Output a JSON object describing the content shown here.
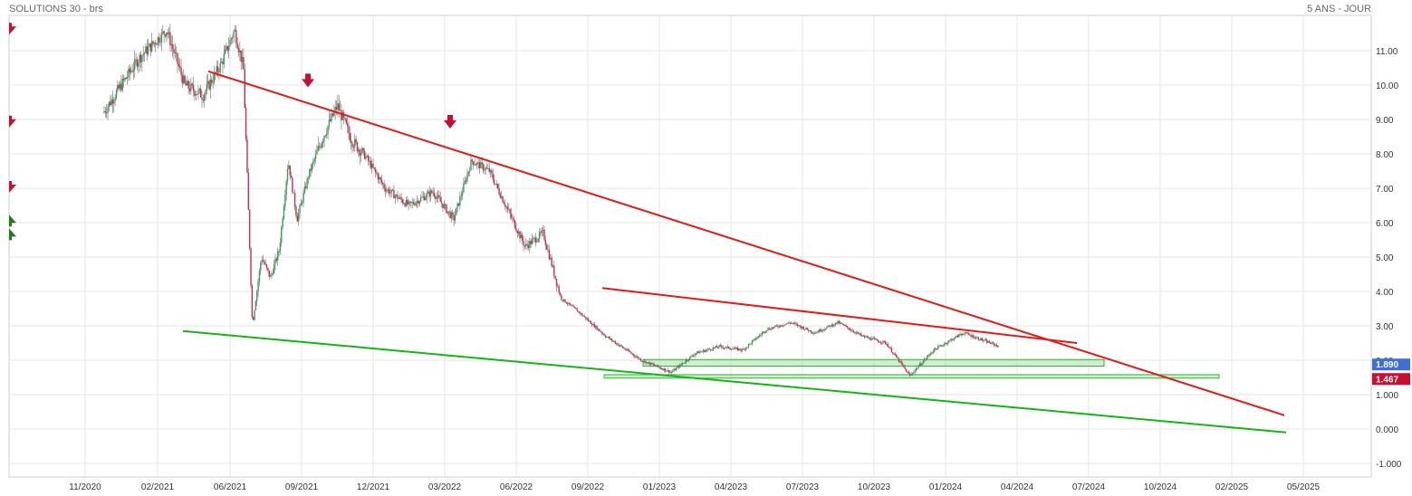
{
  "chart_data": {
    "type": "candlestick",
    "title": "SOLUTIONS 30 - brs",
    "period_label": "5 ANS - JOUR",
    "x_ticks": [
      "11/2020",
      "02/2021",
      "06/2021",
      "09/2021",
      "12/2021",
      "03/2022",
      "06/2022",
      "09/2022",
      "01/2023",
      "04/2023",
      "07/2023",
      "10/2023",
      "01/2024",
      "04/2024",
      "07/2024",
      "10/2024",
      "02/2025",
      "05/2025"
    ],
    "y_ticks": [
      "11.00",
      "10.00",
      "9.00",
      "8.00",
      "7.00",
      "6.00",
      "5.00",
      "4.00",
      "3.00",
      "2.00",
      "1.000",
      "0.000",
      "-1.000"
    ],
    "ylim": [
      -1.35,
      12.1
    ],
    "grid": true,
    "price_path": [
      [
        "11/2020",
        9.2
      ],
      [
        "11/2020",
        10.8
      ],
      [
        "02/2021",
        11.6
      ],
      [
        "02/2021",
        10.0
      ],
      [
        "02/2021",
        9.7
      ],
      [
        "02/2021",
        10.6
      ],
      [
        "06/2021",
        11.6
      ],
      [
        "06/2021",
        10.5
      ],
      [
        "06/2021",
        3.0
      ],
      [
        "06/2021",
        5.0
      ],
      [
        "06/2021",
        4.4
      ],
      [
        "06/2021",
        5.2
      ],
      [
        "06/2021",
        7.8
      ],
      [
        "06/2021",
        6.1
      ],
      [
        "09/2021",
        7.4
      ],
      [
        "09/2021",
        8.5
      ],
      [
        "09/2021",
        9.4
      ],
      [
        "09/2021",
        8.4
      ],
      [
        "09/2021",
        7.9
      ],
      [
        "12/2021",
        7.0
      ],
      [
        "12/2021",
        6.5
      ],
      [
        "12/2021",
        6.9
      ],
      [
        "03/2022",
        6.1
      ],
      [
        "03/2022",
        7.8
      ],
      [
        "03/2022",
        7.5
      ],
      [
        "03/2022",
        6.4
      ],
      [
        "06/2022",
        5.3
      ],
      [
        "06/2022",
        5.7
      ],
      [
        "06/2022",
        3.8
      ],
      [
        "06/2022",
        3.4
      ],
      [
        "09/2022",
        2.7
      ],
      [
        "09/2022",
        2.0
      ],
      [
        "01/2023",
        1.65
      ],
      [
        "01/2023",
        2.2
      ],
      [
        "01/2023",
        2.4
      ],
      [
        "04/2023",
        2.3
      ],
      [
        "04/2023",
        2.9
      ],
      [
        "04/2023",
        3.1
      ],
      [
        "07/2023",
        2.8
      ],
      [
        "07/2023",
        3.1
      ],
      [
        "07/2023",
        2.7
      ],
      [
        "10/2023",
        2.5
      ],
      [
        "10/2023",
        1.55
      ],
      [
        "10/2023",
        2.3
      ],
      [
        "01/2024",
        2.8
      ],
      [
        "01/2024",
        2.4
      ],
      [
        "04/2024",
        2.1
      ],
      [
        "04/2024",
        2.15
      ],
      [
        "04/2024",
        1.89
      ]
    ],
    "trendlines": [
      {
        "color": "#e41a1a",
        "from": [
          "06/2021",
          10.4
        ],
        "to": [
          "05/2025",
          0.4
        ]
      },
      {
        "color": "#e41a1a",
        "from": [
          "09/2022",
          4.1
        ],
        "to": [
          "07/2024",
          2.5
        ]
      },
      {
        "color": "#16b516",
        "from": [
          "02/2021",
          2.85
        ],
        "to": [
          "05/2025",
          -0.1
        ]
      }
    ],
    "support_zones": [
      {
        "from": [
          "01/2023",
          2.02
        ],
        "to": [
          "07/2024",
          1.83
        ]
      },
      {
        "from": [
          "09/2022",
          1.58
        ],
        "to": [
          "02/2025",
          1.48
        ]
      }
    ],
    "signal_arrows": [
      {
        "x": "09/2021",
        "y": 9.7,
        "direction": "down"
      },
      {
        "x": "03/2022",
        "y": 8.5,
        "direction": "down"
      }
    ],
    "side_arrows": [
      {
        "y": 11.6,
        "color": "#c8102e",
        "direction": "down"
      },
      {
        "y": 8.9,
        "color": "#c8102e",
        "direction": "down"
      },
      {
        "y": 7.0,
        "color": "#c8102e",
        "direction": "down"
      },
      {
        "y": 6.1,
        "color": "#1f7a1f",
        "direction": "up"
      },
      {
        "y": 5.7,
        "color": "#1f7a1f",
        "direction": "up"
      }
    ],
    "price_tags": [
      {
        "label": "1.890",
        "value": 1.89,
        "color": "#3d6fd6"
      },
      {
        "label": "1.467",
        "value": 1.467,
        "color": "#c8102e"
      }
    ]
  }
}
